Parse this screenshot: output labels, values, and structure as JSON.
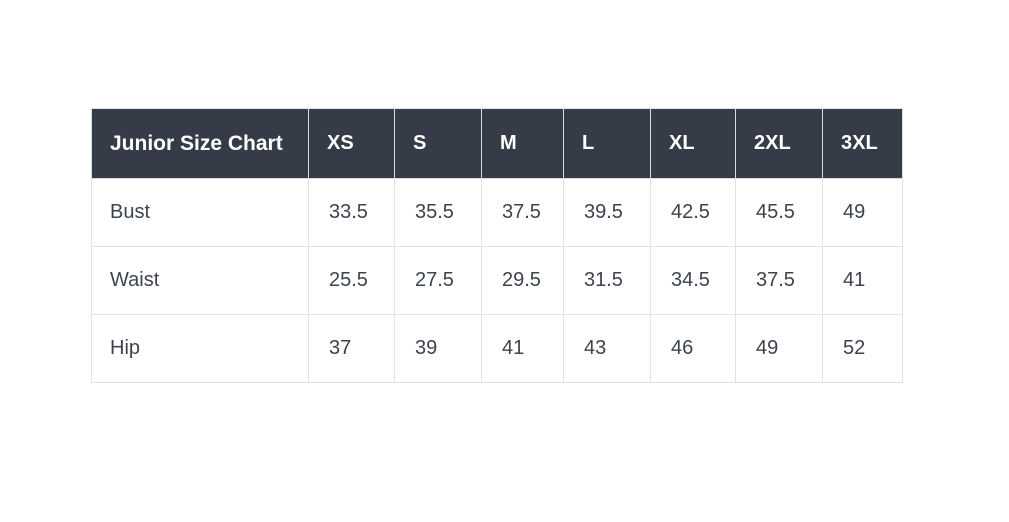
{
  "colors": {
    "page_background": "#ffffff",
    "header_background": "#363c47",
    "header_text": "#ffffff",
    "body_text": "#3d434d",
    "border": "#e1e4e6"
  },
  "table": {
    "title": "Junior Size Chart",
    "columns": [
      "XS",
      "S",
      "M",
      "L",
      "XL",
      "2XL",
      "3XL"
    ],
    "rows": [
      {
        "label": "Bust",
        "values": [
          "33.5",
          "35.5",
          "37.5",
          "39.5",
          "42.5",
          "45.5",
          "49"
        ]
      },
      {
        "label": "Waist",
        "values": [
          "25.5",
          "27.5",
          "29.5",
          "31.5",
          "34.5",
          "37.5",
          "41"
        ]
      },
      {
        "label": "Hip",
        "values": [
          "37",
          "39",
          "41",
          "43",
          "46",
          "49",
          "52"
        ]
      }
    ]
  },
  "chart_data": {
    "type": "table",
    "title": "Junior Size Chart",
    "row_header_label": "Junior Size Chart",
    "columns": [
      "XS",
      "S",
      "M",
      "L",
      "XL",
      "2XL",
      "3XL"
    ],
    "series": [
      {
        "name": "Bust",
        "values": [
          33.5,
          35.5,
          37.5,
          39.5,
          42.5,
          45.5,
          49
        ]
      },
      {
        "name": "Waist",
        "values": [
          25.5,
          27.5,
          29.5,
          31.5,
          34.5,
          37.5,
          41
        ]
      },
      {
        "name": "Hip",
        "values": [
          37,
          39,
          41,
          43,
          46,
          49,
          52
        ]
      }
    ]
  }
}
